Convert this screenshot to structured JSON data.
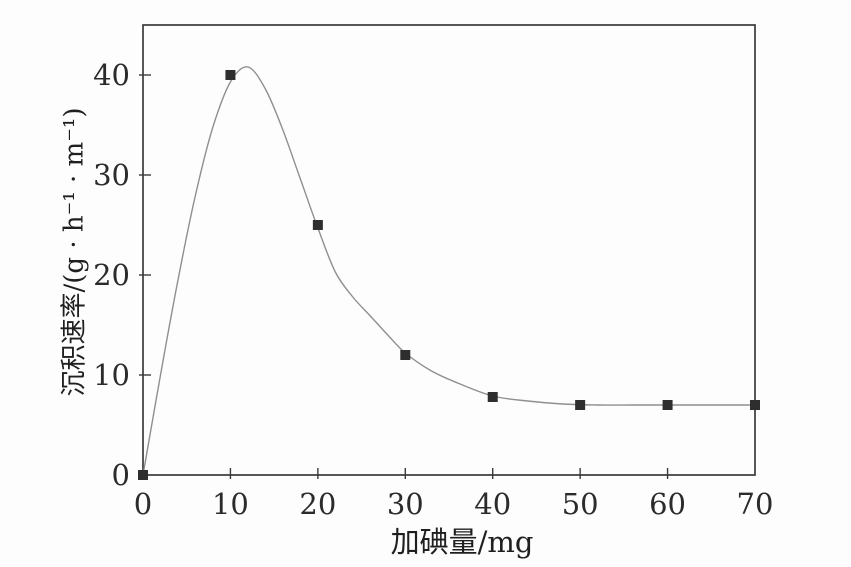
{
  "figure": {
    "background": "#fdfdfd"
  },
  "chart_data": {
    "type": "line",
    "title": "",
    "xlabel": "加碘量/mg",
    "ylabel": "沉积速率/(g · h⁻¹ · m⁻¹)",
    "x": [
      0,
      10,
      20,
      30,
      40,
      50,
      60,
      70
    ],
    "y": [
      0,
      40,
      25,
      12,
      7.8,
      7,
      7,
      7
    ],
    "series": [
      {
        "name": "沉积速率",
        "values": [
          0,
          40,
          25,
          12,
          7.8,
          7,
          7,
          7
        ]
      }
    ],
    "xlim": [
      0,
      70
    ],
    "ylim": [
      0,
      45
    ],
    "xticks": [
      0,
      10,
      20,
      30,
      40,
      50,
      60,
      70
    ],
    "yticks": [
      0,
      10,
      20,
      30,
      40
    ],
    "xtick_labels": [
      "0",
      "10",
      "20",
      "30",
      "40",
      "50",
      "60",
      "70"
    ],
    "ytick_labels": [
      "0",
      "10",
      "20",
      "30",
      "40"
    ],
    "grid": false,
    "legend": "none",
    "marker": "filled-square",
    "marker_size": 10,
    "colors": {
      "line": "#8f8f8f",
      "marker": "#2e2e2e",
      "axis": "#3a3a3a",
      "text": "#2b2b2b"
    },
    "curve": [
      [
        0,
        0
      ],
      [
        2,
        10
      ],
      [
        4,
        19.5
      ],
      [
        6,
        28
      ],
      [
        8,
        34.8
      ],
      [
        10,
        39.3
      ],
      [
        12,
        40.8
      ],
      [
        14,
        38.6
      ],
      [
        16,
        34.5
      ],
      [
        18,
        29.6
      ],
      [
        20,
        24.7
      ],
      [
        22,
        20.3
      ],
      [
        24,
        17.8
      ],
      [
        26,
        15.9
      ],
      [
        28,
        14.0
      ],
      [
        30,
        12.2
      ],
      [
        33,
        10.4
      ],
      [
        36,
        9.2
      ],
      [
        40,
        7.9
      ],
      [
        44,
        7.4
      ],
      [
        48,
        7.1
      ],
      [
        52,
        7.0
      ],
      [
        56,
        7.0
      ],
      [
        60,
        7.0
      ],
      [
        65,
        7.0
      ],
      [
        70,
        7.0
      ]
    ]
  }
}
